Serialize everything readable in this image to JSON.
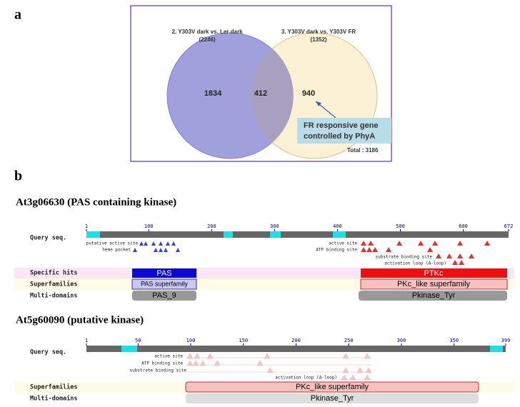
{
  "panel_a": {
    "label": "a",
    "set_left": {
      "title": "2. Y303V dark vs. Ler dark",
      "count": "(2246)",
      "unique": 1834
    },
    "set_right": {
      "title": "3. Y303V dark vs. Y303V FR",
      "count": "(1352)",
      "unique": 940
    },
    "overlap": 412,
    "callout": [
      "FR responsive gene",
      "controlled by PhyA"
    ],
    "total": "Total : 3186"
  },
  "panel_b": {
    "label": "b",
    "proteins": [
      {
        "title": "At3g06630  (PAS containing kinase)",
        "ticks": [
          1,
          100,
          200,
          300,
          400,
          500,
          600,
          672
        ],
        "rows": [
          "Query seq.",
          "Specific hits",
          "Superfamilies",
          "Multi-domains"
        ],
        "features": [
          "putative active site",
          "heme pocket",
          "active site",
          "ATP binding site",
          "substrate binding site",
          "activation loop (A-loop)"
        ],
        "domains": [
          "PAS",
          "PAS superfamily",
          "PAS_9",
          "PTKc",
          "PKc_like superfamily",
          "Pkinase_Tyr"
        ]
      },
      {
        "title": "At5g60090 (putative kinase)",
        "ticks": [
          1,
          50,
          100,
          150,
          200,
          250,
          300,
          350,
          399
        ],
        "rows": [
          "Query seq.",
          "Superfamilies",
          "Multi-domains"
        ],
        "features": [
          "active site",
          "ATP binding site",
          "substrate binding site",
          "activation loop (A-loop)"
        ],
        "domains": [
          "PKc_like superfamily",
          "Pkinase_Tyr"
        ]
      }
    ]
  }
}
